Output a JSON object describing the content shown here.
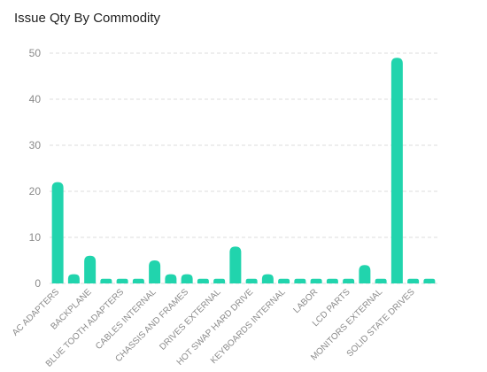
{
  "chart_data": {
    "type": "bar",
    "title": "Issue Qty By Commodity",
    "xlabel": "",
    "ylabel": "",
    "ylim": [
      0,
      50
    ],
    "yticks": [
      0,
      10,
      20,
      30,
      40,
      50
    ],
    "grid": true,
    "bar_color": "#21d4ad",
    "grid_color": "#dddddd",
    "categories": [
      "AC ADAPTERS",
      "",
      "BACKPLANE",
      "",
      "BLUE TOOTH ADAPTERS",
      "",
      "CABLES INTERNAL",
      "",
      "CHASSIS AND FRAMES",
      "",
      "DRIVES EXTERNAL",
      "",
      "HOT SWAP HARD DRIVE",
      "",
      "KEYBOARDS INTERNAL",
      "",
      "LABOR",
      "",
      "LCD PARTS",
      "",
      "MONITORS EXTERNAL",
      "",
      "SOLID STATE DRIVES",
      ""
    ],
    "values": [
      22,
      2,
      6,
      1,
      1,
      1,
      5,
      2,
      2,
      1,
      1,
      8,
      1,
      2,
      1,
      1,
      1,
      1,
      1,
      4,
      1,
      49,
      1,
      1
    ]
  }
}
